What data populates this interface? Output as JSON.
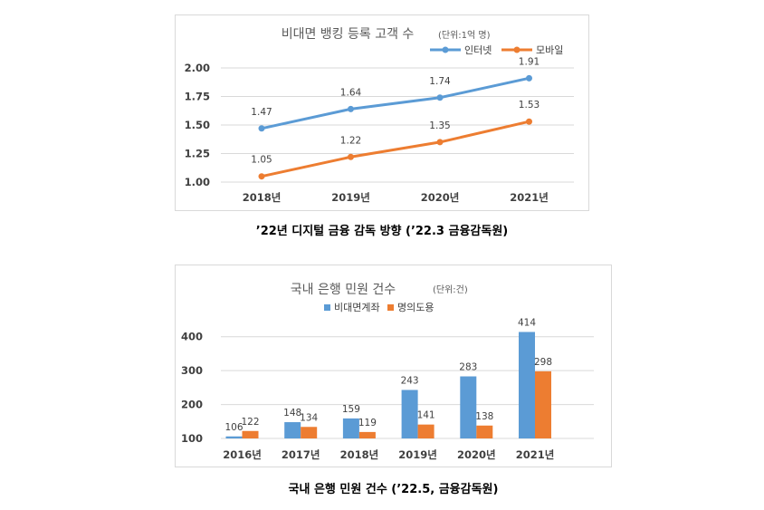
{
  "charts": [
    {
      "title": "비대면 뱅킹 등록 고객 수",
      "unit": "(단위:1억 명)",
      "caption": "’22년 디지털 금융 감독 방향 (’22.3 금융감독원)"
    },
    {
      "title": "국내 은행 민원 건수",
      "unit": "(단위:건)",
      "caption": "국내 은행 민원 건수 (’22.5, 금융감독원)"
    }
  ],
  "chart_data": [
    {
      "type": "line",
      "title": "비대면 뱅킹 등록 고객 수 (단위:1억 명)",
      "categories": [
        "2018년",
        "2019년",
        "2020년",
        "2021년"
      ],
      "series": [
        {
          "name": "인터넷",
          "color": "#5b9bd5",
          "values": [
            1.47,
            1.64,
            1.74,
            1.91
          ]
        },
        {
          "name": "모바일",
          "color": "#ed7d31",
          "values": [
            1.05,
            1.22,
            1.35,
            1.53
          ]
        }
      ],
      "yticks": [
        "1.00",
        "1.25",
        "1.50",
        "1.75",
        "2.00"
      ],
      "ylim": [
        1.0,
        2.0
      ],
      "legend": "top-right",
      "grid": true
    },
    {
      "type": "bar",
      "title": "국내 은행 민원 건수 (단위:건)",
      "categories": [
        "2016년",
        "2017년",
        "2018년",
        "2019년",
        "2020년",
        "2021년"
      ],
      "series": [
        {
          "name": "비대면계좌",
          "color": "#5b9bd5",
          "values": [
            106,
            148,
            159,
            243,
            283,
            414
          ]
        },
        {
          "name": "명의도용",
          "color": "#ed7d31",
          "values": [
            122,
            134,
            119,
            141,
            138,
            298
          ]
        }
      ],
      "yticks": [
        "100",
        "200",
        "300",
        "400"
      ],
      "ylim": [
        100,
        450
      ],
      "legend": "top",
      "grid": true
    }
  ]
}
